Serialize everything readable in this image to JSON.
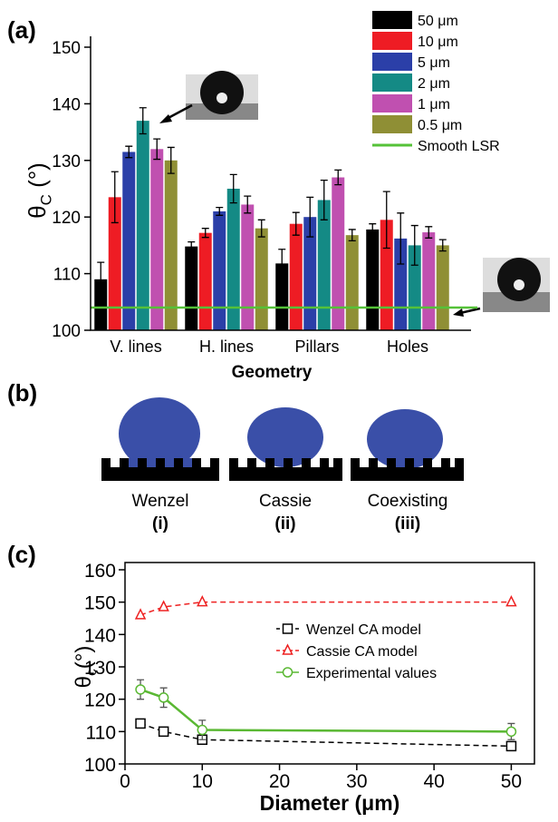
{
  "panels": [
    "(a)",
    "(b)",
    "(c)"
  ],
  "chart_data": [
    {
      "type": "bar",
      "ylabel": {
        "symbol": "θ",
        "subscript": "C",
        "unit": " (°)"
      },
      "xlabel": "Geometry",
      "categories": [
        "V. lines",
        "H. lines",
        "Pillars",
        "Holes"
      ],
      "ylim": [
        100,
        150
      ],
      "yticks": [
        100,
        110,
        120,
        130,
        140,
        150
      ],
      "series": [
        {
          "name": "50 μm",
          "color": "#000000",
          "values": [
            109,
            114.8,
            111.8,
            117.8
          ],
          "errors": [
            3,
            0.8,
            2.5,
            1
          ]
        },
        {
          "name": "10 μm",
          "color": "#ee1c24",
          "values": [
            123.5,
            117.2,
            118.8,
            119.5
          ],
          "errors": [
            4.5,
            0.8,
            2,
            5
          ]
        },
        {
          "name": "5 μm",
          "color": "#2b3fa8",
          "values": [
            131.5,
            121,
            120,
            116.2
          ],
          "errors": [
            1,
            0.7,
            3.5,
            4.5
          ]
        },
        {
          "name": "2 μm",
          "color": "#148a85",
          "values": [
            137,
            125,
            123,
            115
          ],
          "errors": [
            2.3,
            2.5,
            3.5,
            3.5
          ]
        },
        {
          "name": "1 μm",
          "color": "#c050b0",
          "values": [
            132,
            122.2,
            127,
            117.3
          ],
          "errors": [
            1.8,
            1.5,
            1.3,
            1
          ]
        },
        {
          "name": "0.5 μm",
          "color": "#8f8f35",
          "values": [
            130,
            118,
            116.8,
            115
          ],
          "errors": [
            2.3,
            1.5,
            1,
            1
          ]
        }
      ],
      "reference": {
        "name": "Smooth LSR",
        "value": 104,
        "color": "#55c238"
      }
    },
    {
      "type": "line",
      "ylabel": {
        "symbol": "θ",
        "subscript": "c",
        "unit": "(°)"
      },
      "xlabel": "Diameter (μm)",
      "x": [
        2,
        5,
        10,
        50
      ],
      "xlim": [
        0,
        53
      ],
      "xticks": [
        0,
        10,
        20,
        30,
        40,
        50
      ],
      "ylim": [
        100,
        160
      ],
      "yticks": [
        100,
        110,
        120,
        130,
        140,
        150,
        160
      ],
      "series": [
        {
          "name": "Wenzel CA model",
          "color": "#000000",
          "marker": "square",
          "dashed": true,
          "values": [
            112.5,
            110,
            107.5,
            105.5
          ]
        },
        {
          "name": "Cassie CA model",
          "color": "#ee2222",
          "marker": "triangle",
          "dashed": true,
          "values": [
            146,
            148.5,
            150,
            150
          ]
        },
        {
          "name": "Experimental values",
          "color": "#5ab833",
          "marker": "circle",
          "dashed": false,
          "values": [
            123,
            120.5,
            110.5,
            110
          ],
          "errors": [
            3,
            3,
            3,
            2.5
          ]
        }
      ]
    }
  ],
  "diagram": {
    "labels": [
      [
        "Wenzel",
        "(i)"
      ],
      [
        "Cassie",
        "(ii)"
      ],
      [
        "Coexisting",
        "(iii)"
      ]
    ]
  }
}
